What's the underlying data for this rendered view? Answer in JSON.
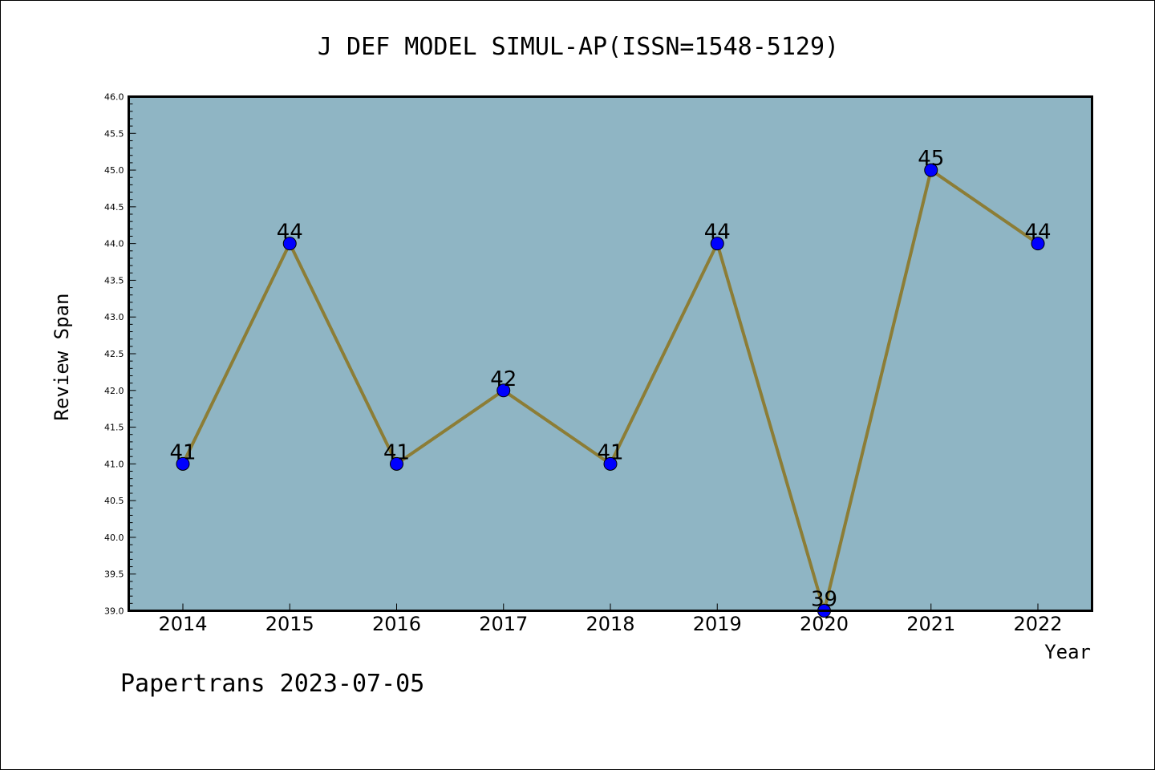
{
  "footer": "Papertrans 2023-07-05",
  "colors": {
    "plot_background": "#8fb5c4",
    "line": "#8c7d36",
    "marker": "#0000ff",
    "page_background": "#ffffff"
  },
  "chart_data": {
    "type": "line",
    "title": "J DEF MODEL SIMUL-AP(ISSN=1548-5129)",
    "xlabel": "Year",
    "ylabel": "Review Span",
    "categories": [
      "2014",
      "2015",
      "2016",
      "2017",
      "2018",
      "2019",
      "2020",
      "2021",
      "2022"
    ],
    "series": [
      {
        "values": [
          41,
          44,
          41,
          42,
          41,
          44,
          39,
          45,
          44
        ]
      }
    ],
    "data_labels": [
      "41",
      "44",
      "41",
      "42",
      "41",
      "44",
      "39",
      "45",
      "44"
    ],
    "ylim": [
      39.0,
      46.0
    ],
    "yticks": [
      "39.0",
      "39.5",
      "40.0",
      "40.5",
      "41.0",
      "41.5",
      "42.0",
      "42.5",
      "43.0",
      "43.5",
      "44.0",
      "44.5",
      "45.0",
      "45.5",
      "46.0"
    ],
    "grid": false,
    "legend": "none",
    "marker": "circle"
  }
}
